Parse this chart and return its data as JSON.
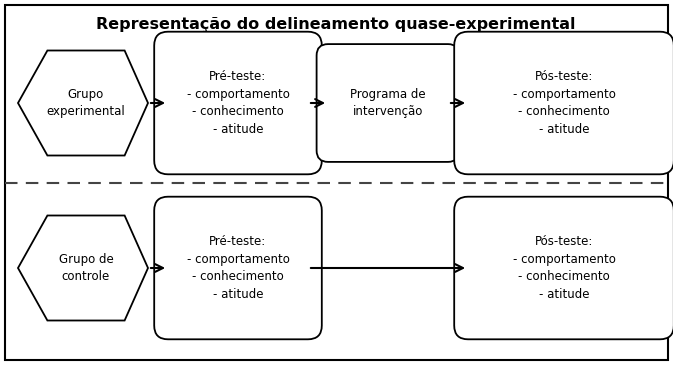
{
  "title": "Representação do delineamento quase-experimental",
  "title_fontsize": 11.5,
  "title_fontweight": "bold",
  "bg_color": "#ffffff",
  "border_color": "#000000",
  "box_facecolor": "#ffffff",
  "box_edgecolor": "#000000",
  "text_color": "#000000",
  "font_size": 8.5,
  "group_exp": "Grupo\nexperimental",
  "group_ctrl": "Grupo de\ncontrole",
  "pre_teste_text": "Pré-teste:\n- comportamento\n- conhecimento\n- atitude",
  "programa_text": "Programa de\nintervenção",
  "pos_teste_text": "Pós-teste:\n- comportamento\n- conhecimento\n- atitude"
}
